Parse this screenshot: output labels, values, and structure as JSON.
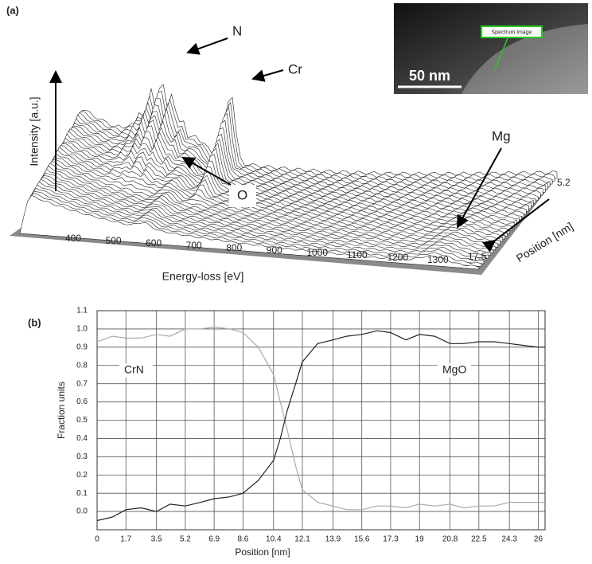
{
  "panel_a": {
    "label": "(a)",
    "y_label": "Intensity [a.u.]",
    "x_label": "Energy-loss [eV]",
    "z_label": "Position [nm]",
    "energy_ticks": [
      400,
      500,
      600,
      700,
      800,
      900,
      1000,
      1100,
      1200,
      1300
    ],
    "position_ticks": [
      5.2,
      17.5
    ],
    "peaks": [
      "N",
      "Cr",
      "O",
      "Mg"
    ],
    "inset": {
      "label": "Spectrum image",
      "scale_bar": "50 nm"
    }
  },
  "chart_data": {
    "type": "line",
    "panel_label": "(b)",
    "x_label": "Position [nm]",
    "y_label": "Fraction units",
    "x": [
      0,
      0.9,
      1.7,
      2.6,
      3.5,
      4.3,
      5.2,
      6.1,
      6.9,
      7.8,
      8.6,
      9.5,
      10.4,
      10.8,
      11.2,
      11.7,
      12.1,
      13,
      13.9,
      14.7,
      15.6,
      16.5,
      17.3,
      18.2,
      19,
      19.9,
      20.8,
      21.6,
      22.5,
      23.4,
      24.3,
      25.1,
      26,
      26.4
    ],
    "series": [
      {
        "name": "CrN",
        "color": "#aaaaaa",
        "values": [
          0.93,
          0.96,
          0.95,
          0.95,
          0.97,
          0.96,
          1.0,
          1.0,
          1.01,
          1.0,
          0.98,
          0.9,
          0.75,
          0.6,
          0.45,
          0.25,
          0.12,
          0.05,
          0.03,
          0.01,
          0.01,
          0.03,
          0.03,
          0.02,
          0.04,
          0.03,
          0.04,
          0.02,
          0.03,
          0.03,
          0.05,
          0.05,
          0.05,
          0.05
        ]
      },
      {
        "name": "MgO",
        "color": "#222222",
        "values": [
          -0.05,
          -0.03,
          0.01,
          0.02,
          0.0,
          0.04,
          0.03,
          0.05,
          0.07,
          0.08,
          0.1,
          0.17,
          0.28,
          0.4,
          0.55,
          0.7,
          0.82,
          0.92,
          0.94,
          0.96,
          0.97,
          0.99,
          0.98,
          0.94,
          0.97,
          0.96,
          0.92,
          0.92,
          0.93,
          0.93,
          0.92,
          0.91,
          0.9,
          0.9
        ]
      }
    ],
    "xlim": [
      0,
      26.4
    ],
    "ylim": [
      -0.1,
      1.1
    ],
    "xticks": [
      0,
      1.7,
      3.5,
      5.2,
      6.9,
      8.6,
      10.4,
      12.1,
      13.9,
      15.6,
      17.3,
      19,
      20.8,
      22.5,
      24.3,
      26
    ],
    "yticks": [
      {
        "value": 1.1,
        "label": "1.1"
      },
      {
        "value": 1,
        "label": "1.0"
      },
      0.9,
      0.8,
      0.7,
      0.6,
      0.5,
      0.4,
      0.3,
      0.2,
      0.1,
      {
        "value": 0,
        "label": "0.0"
      }
    ],
    "grid": true
  }
}
